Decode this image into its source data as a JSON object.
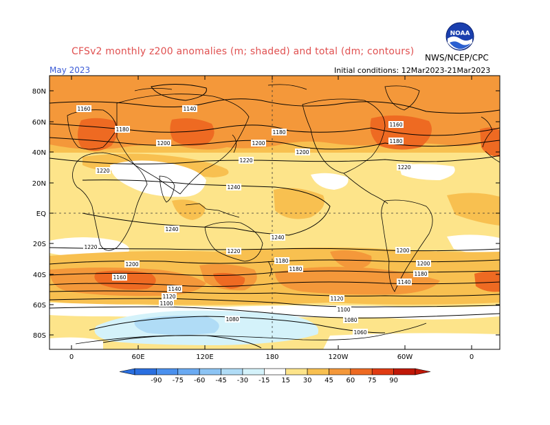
{
  "header": {
    "title": "CFSv2 monthly z200 anomalies (m; shaded) and total (dm; contours)",
    "agency": "NWS/NCEP/CPC",
    "month": "May 2023",
    "initial_conditions": "Initial conditions: 12Mar2023-21Mar2023",
    "logo_text": "NOAA"
  },
  "axes": {
    "lat_labels": [
      "80N",
      "60N",
      "40N",
      "20N",
      "EQ",
      "20S",
      "40S",
      "60S",
      "80S"
    ],
    "lon_labels": [
      "0",
      "60E",
      "120E",
      "180",
      "120W",
      "60W",
      "0"
    ]
  },
  "contour_labels": [
    "1160",
    "1140",
    "1180",
    "1200",
    "1220",
    "1240",
    "1160",
    "1180",
    "1200",
    "1180",
    "1200",
    "1220",
    "1220",
    "1240",
    "1240",
    "1220",
    "1220",
    "1200",
    "1180",
    "1160",
    "1140",
    "1120",
    "1100",
    "1200",
    "1180",
    "1200",
    "1180",
    "1140",
    "1120",
    "1100",
    "1080",
    "1080",
    "1060"
  ],
  "colorbar": {
    "ticks": [
      "-90",
      "-75",
      "-60",
      "-45",
      "-30",
      "-15",
      "15",
      "30",
      "45",
      "60",
      "75",
      "90"
    ],
    "colors": [
      "#2a6fe0",
      "#4a90ee",
      "#6aaaf2",
      "#8cc4f4",
      "#b0dcf6",
      "#d4f2fa",
      "#ffffff",
      "#fde48a",
      "#f8c050",
      "#f4983a",
      "#ee6a22",
      "#e03a12",
      "#c01808"
    ]
  },
  "colors": {
    "title": "#e05050",
    "month": "#3b5bd6",
    "land_outline": "#000000"
  }
}
